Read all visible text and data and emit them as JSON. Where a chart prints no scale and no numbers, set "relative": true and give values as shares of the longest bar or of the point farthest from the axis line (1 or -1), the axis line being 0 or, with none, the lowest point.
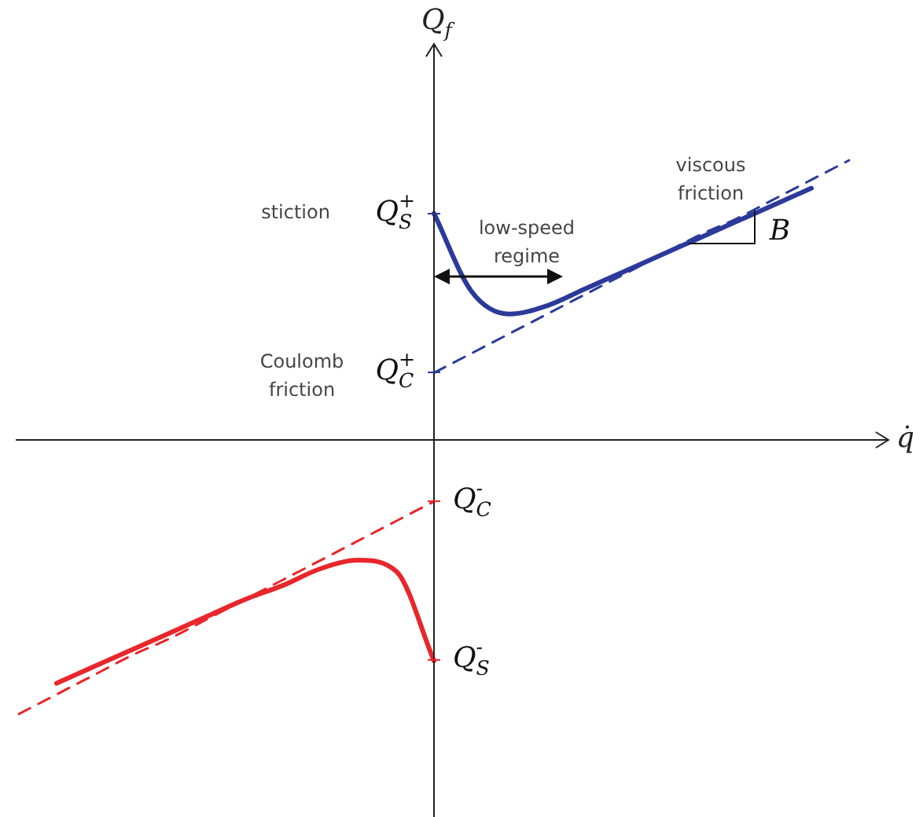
{
  "chart_data": {
    "type": "line",
    "relative": true,
    "xlabel": "q̇",
    "ylabel": "Q$_{f}$",
    "legend": false,
    "marker": "none",
    "categories": [
      null,
      null,
      null,
      null,
      null,
      null,
      null,
      null,
      null,
      null,
      null,
      null,
      null,
      null,
      null,
      null,
      null,
      null,
      null,
      null,
      null,
      null,
      null
    ],
    "series": [
      {
        "color": "#2b3a9a",
        "line_style": "solid",
        "values": [
          null,
          null,
          null,
          null,
          null,
          null,
          null,
          null,
          null,
          null,
          null,
          0.81,
          0.53,
          0.45,
          0.48,
          0.54,
          0.6,
          0.66,
          0.72,
          0.78,
          0.84,
          0.9,
          null
        ]
      },
      {
        "color": "#2b3a9a",
        "line_style": "dashed",
        "values": [
          null,
          null,
          null,
          null,
          null,
          null,
          null,
          null,
          null,
          null,
          null,
          0.24,
          0.31,
          0.38,
          0.45,
          0.52,
          0.59,
          0.66,
          0.73,
          0.79,
          0.86,
          0.93,
          1.0
        ]
      },
      {
        "color": "#e8262b",
        "line_style": "solid",
        "values": [
          null,
          -0.87,
          -0.81,
          -0.75,
          -0.69,
          -0.63,
          -0.57,
          -0.52,
          -0.46,
          -0.43,
          -0.47,
          -0.79,
          null,
          null,
          null,
          null,
          null,
          null,
          null,
          null,
          null,
          null,
          null
        ]
      },
      {
        "color": "#e8262b",
        "line_style": "dashed",
        "values": [
          -0.98,
          -0.91,
          -0.84,
          -0.77,
          -0.71,
          -0.64,
          -0.57,
          -0.5,
          -0.43,
          -0.36,
          -0.29,
          -0.22,
          null,
          null,
          null,
          null,
          null,
          null,
          null,
          null,
          null,
          null,
          null
        ]
      }
    ],
    "annotations": [
      "Q$_{S}$$^{+}$",
      "Q$_{C}$$^{+}$",
      "Q$_{C}$$^{-}$",
      "Q$_{S}$$^{-}$",
      "stiction",
      "Coulomb friction",
      "viscous friction",
      "low-speed regime",
      "B"
    ]
  }
}
